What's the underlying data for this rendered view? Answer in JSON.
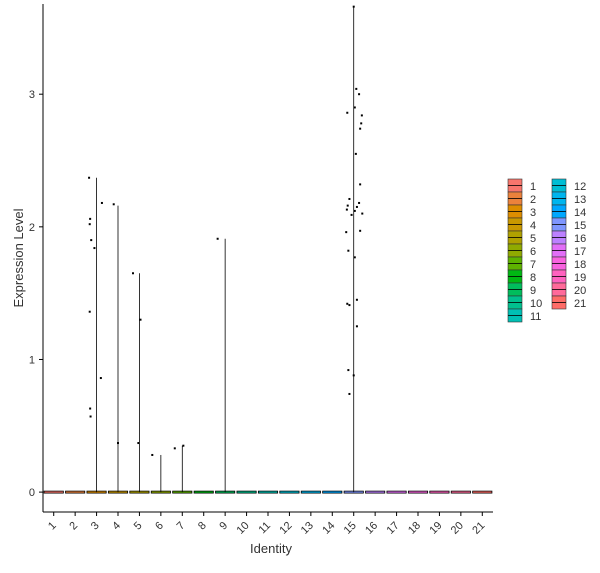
{
  "chart_data": {
    "type": "violin",
    "xlabel": "Identity",
    "ylabel": "Expression Level",
    "categories": [
      "1",
      "2",
      "3",
      "4",
      "5",
      "6",
      "7",
      "8",
      "9",
      "10",
      "11",
      "12",
      "13",
      "14",
      "15",
      "16",
      "17",
      "18",
      "19",
      "20",
      "21"
    ],
    "ylim": [
      -0.15,
      3.68
    ],
    "yticks": [
      0,
      1,
      2,
      3
    ],
    "grid": false,
    "legend_position": "right",
    "legend": [
      {
        "label": "1",
        "color": "#F8766D"
      },
      {
        "label": "2",
        "color": "#EC823C"
      },
      {
        "label": "3",
        "color": "#DD8D00"
      },
      {
        "label": "4",
        "color": "#C99800"
      },
      {
        "label": "5",
        "color": "#B0A100"
      },
      {
        "label": "6",
        "color": "#90AA00"
      },
      {
        "label": "7",
        "color": "#5EB300"
      },
      {
        "label": "8",
        "color": "#00B813"
      },
      {
        "label": "9",
        "color": "#00BD5C"
      },
      {
        "label": "10",
        "color": "#00C08E"
      },
      {
        "label": "11",
        "color": "#00C0B4"
      },
      {
        "label": "12",
        "color": "#00BDD4"
      },
      {
        "label": "13",
        "color": "#00B5EE"
      },
      {
        "label": "14",
        "color": "#00A7FF"
      },
      {
        "label": "15",
        "color": "#7F96FF"
      },
      {
        "label": "16",
        "color": "#BC81FF"
      },
      {
        "label": "17",
        "color": "#E26EF7"
      },
      {
        "label": "18",
        "color": "#F863DF"
      },
      {
        "label": "19",
        "color": "#FF62BF"
      },
      {
        "label": "20",
        "color": "#FF6A9A"
      },
      {
        "label": "21",
        "color": "#FF6C67"
      }
    ],
    "violins": [
      {
        "category": "1",
        "max": 0,
        "points": []
      },
      {
        "category": "2",
        "max": 0,
        "points": []
      },
      {
        "category": "3",
        "max": 2.37,
        "points": [
          {
            "x": -0.35,
            "y": 2.37
          },
          {
            "x": 0.25,
            "y": 2.18
          },
          {
            "x": -0.3,
            "y": 2.06
          },
          {
            "x": -0.32,
            "y": 2.02
          },
          {
            "x": -0.25,
            "y": 1.9
          },
          {
            "x": -0.1,
            "y": 1.84
          },
          {
            "x": -0.32,
            "y": 1.36
          },
          {
            "x": 0.2,
            "y": 0.86
          },
          {
            "x": -0.3,
            "y": 0.63
          },
          {
            "x": -0.28,
            "y": 0.57
          }
        ]
      },
      {
        "category": "4",
        "max": 2.16,
        "points": [
          {
            "x": -0.2,
            "y": 2.17
          },
          {
            "x": 0.0,
            "y": 0.37
          }
        ]
      },
      {
        "category": "5",
        "max": 1.65,
        "points": [
          {
            "x": -0.3,
            "y": 1.65
          },
          {
            "x": 0.05,
            "y": 1.3
          },
          {
            "x": -0.05,
            "y": 0.37
          }
        ]
      },
      {
        "category": "6",
        "max": 0.28,
        "points": [
          {
            "x": -0.4,
            "y": 0.28
          }
        ]
      },
      {
        "category": "7",
        "max": 0.35,
        "points": [
          {
            "x": -0.35,
            "y": 0.33
          },
          {
            "x": 0.05,
            "y": 0.35
          }
        ]
      },
      {
        "category": "8",
        "max": 0,
        "points": []
      },
      {
        "category": "9",
        "max": 1.91,
        "points": [
          {
            "x": -0.35,
            "y": 1.91
          }
        ]
      },
      {
        "category": "10",
        "max": 0,
        "points": []
      },
      {
        "category": "11",
        "max": 0,
        "points": []
      },
      {
        "category": "12",
        "max": 0,
        "points": []
      },
      {
        "category": "13",
        "max": 0,
        "points": []
      },
      {
        "category": "14",
        "max": 0,
        "points": []
      },
      {
        "category": "15",
        "max": 3.66,
        "points": [
          {
            "x": 0.0,
            "y": 3.66
          },
          {
            "x": 0.12,
            "y": 3.04
          },
          {
            "x": 0.25,
            "y": 3.0
          },
          {
            "x": 0.05,
            "y": 2.9
          },
          {
            "x": -0.3,
            "y": 2.86
          },
          {
            "x": 0.38,
            "y": 2.84
          },
          {
            "x": 0.35,
            "y": 2.78
          },
          {
            "x": 0.3,
            "y": 2.74
          },
          {
            "x": 0.1,
            "y": 2.55
          },
          {
            "x": 0.3,
            "y": 2.32
          },
          {
            "x": -0.2,
            "y": 2.21
          },
          {
            "x": 0.25,
            "y": 2.18
          },
          {
            "x": -0.28,
            "y": 2.16
          },
          {
            "x": 0.15,
            "y": 2.15
          },
          {
            "x": -0.32,
            "y": 2.13
          },
          {
            "x": 0.05,
            "y": 2.12
          },
          {
            "x": 0.4,
            "y": 2.1
          },
          {
            "x": -0.1,
            "y": 2.09
          },
          {
            "x": 0.3,
            "y": 1.97
          },
          {
            "x": -0.35,
            "y": 1.96
          },
          {
            "x": -0.25,
            "y": 1.82
          },
          {
            "x": 0.05,
            "y": 1.77
          },
          {
            "x": 0.15,
            "y": 1.45
          },
          {
            "x": -0.3,
            "y": 1.42
          },
          {
            "x": -0.2,
            "y": 1.41
          },
          {
            "x": 0.15,
            "y": 1.25
          },
          {
            "x": -0.25,
            "y": 0.92
          },
          {
            "x": 0.0,
            "y": 0.88
          },
          {
            "x": -0.2,
            "y": 0.74
          }
        ]
      },
      {
        "category": "16",
        "max": 0,
        "points": []
      },
      {
        "category": "17",
        "max": 0,
        "points": []
      },
      {
        "category": "18",
        "max": 0,
        "points": []
      },
      {
        "category": "19",
        "max": 0,
        "points": []
      },
      {
        "category": "20",
        "max": 0,
        "points": []
      },
      {
        "category": "21",
        "max": 0,
        "points": []
      }
    ]
  }
}
